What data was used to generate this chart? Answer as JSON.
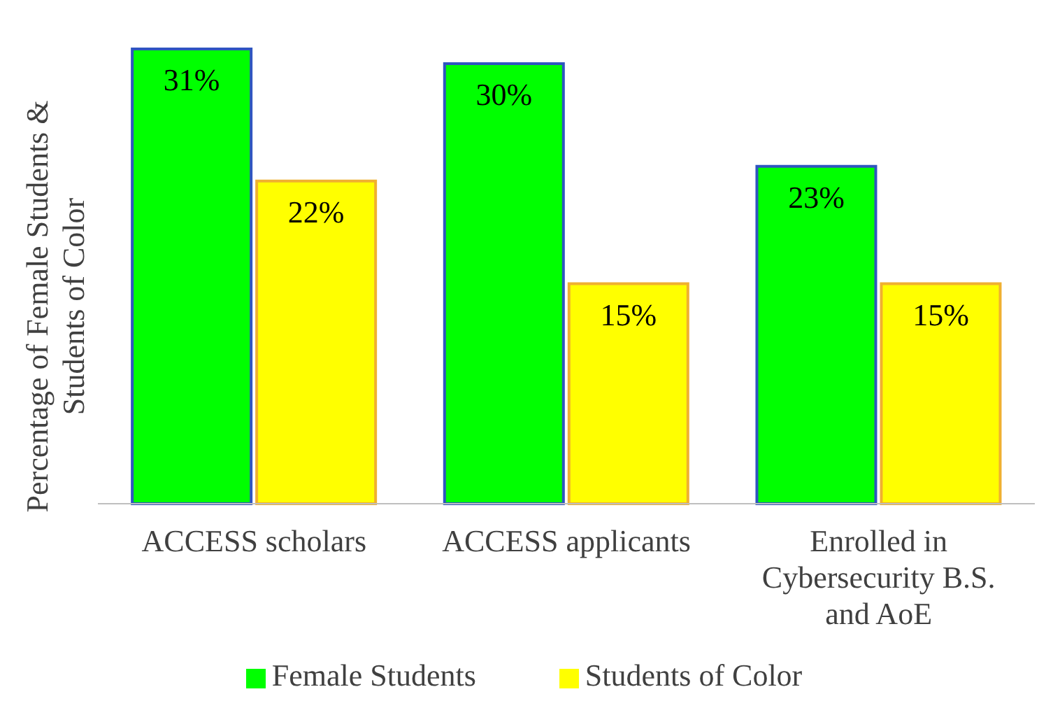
{
  "chart_data": {
    "type": "bar",
    "ylabel": "Percentage of Female Students & Students of Color",
    "categories": [
      "ACCESS scholars",
      "ACCESS applicants",
      "Enrolled in Cybersecurity B.S. and AoE"
    ],
    "series": [
      {
        "name": "Female Students",
        "color": "#00ff00",
        "values": [
          31,
          30,
          23
        ],
        "value_labels": [
          "31%",
          "30%",
          "23%"
        ]
      },
      {
        "name": "Students of Color",
        "color": "#ffff00",
        "values": [
          22,
          15,
          15
        ],
        "value_labels": [
          "22%",
          "15%",
          "15%"
        ]
      }
    ],
    "legend": "bottom"
  }
}
